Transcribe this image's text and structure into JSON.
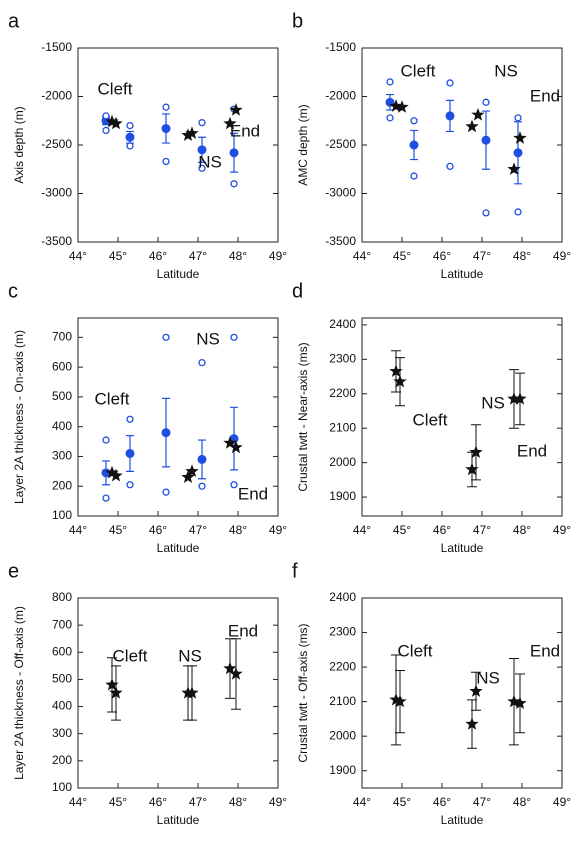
{
  "chart_data": [
    {
      "type": "scatter",
      "label": "a",
      "ylabel": "Axis depth (m)",
      "xlabel": "Latitude",
      "xlim": [
        44,
        49
      ],
      "ylim": [
        -3500,
        -1500
      ],
      "xticks": [
        {
          "value": 44,
          "label": "44°"
        },
        {
          "value": 45,
          "label": "45°"
        },
        {
          "value": 46,
          "label": "46°"
        },
        {
          "value": 47,
          "label": "47°"
        },
        {
          "value": 48,
          "label": "48°"
        },
        {
          "value": 49,
          "label": "49°"
        }
      ],
      "yticks": [
        -3500,
        -3000,
        -2500,
        -2000,
        -1500
      ],
      "color": "#1f4fe0",
      "means": {
        "x": [
          44.7,
          45.3,
          46.2,
          47.1,
          47.9
        ],
        "values": [
          -2250,
          -2420,
          -2330,
          -2550,
          -2580
        ],
        "errors": [
          40,
          60,
          150,
          130,
          200
        ]
      },
      "extremes": {
        "min": [
          -2350,
          -2510,
          -2670,
          -2740,
          -2900
        ],
        "max": [
          -2200,
          -2300,
          -2110,
          -2270,
          -2130
        ]
      },
      "stars": {
        "x": [
          44.85,
          44.95,
          46.75,
          46.85,
          47.8,
          47.95
        ],
        "values": [
          -2260,
          -2280,
          -2400,
          -2380,
          -2280,
          -2140
        ]
      },
      "annotations": [
        "Cleft",
        "NS",
        "End"
      ]
    },
    {
      "type": "scatter",
      "label": "b",
      "ylabel": "AMC depth (m)",
      "xlabel": "Latitude",
      "xlim": [
        44,
        49
      ],
      "ylim": [
        -3500,
        -1500
      ],
      "xticks": [
        {
          "value": 44,
          "label": "44°"
        },
        {
          "value": 45,
          "label": "45°"
        },
        {
          "value": 46,
          "label": "46°"
        },
        {
          "value": 47,
          "label": "47°"
        },
        {
          "value": 48,
          "label": "48°"
        },
        {
          "value": 49,
          "label": "49°"
        }
      ],
      "yticks": [
        -3500,
        -3000,
        -2500,
        -2000,
        -1500
      ],
      "color": "#1f4fe0",
      "means": {
        "x": [
          44.7,
          45.3,
          46.2,
          47.1,
          47.9
        ],
        "values": [
          -2060,
          -2500,
          -2200,
          -2450,
          -2580
        ],
        "errors": [
          80,
          150,
          160,
          300,
          320
        ]
      },
      "extremes": {
        "min": [
          -2220,
          -2820,
          -2720,
          -3200,
          -3190
        ],
        "max": [
          -1850,
          -2250,
          -1860,
          -2060,
          -2220
        ]
      },
      "stars": {
        "x": [
          44.85,
          45.0,
          46.75,
          46.9,
          47.8,
          47.95
        ],
        "values": [
          -2100,
          -2110,
          -2310,
          -2190,
          -2750,
          -2430
        ]
      },
      "annotations": [
        "Cleft",
        "NS",
        "End"
      ]
    },
    {
      "type": "scatter",
      "label": "c",
      "ylabel": "Layer 2A thickness - On-axis (m)",
      "xlabel": "Latitude",
      "xlim": [
        44,
        49
      ],
      "ylim": [
        100,
        765
      ],
      "xticks": [
        {
          "value": 44,
          "label": "44°"
        },
        {
          "value": 45,
          "label": "45°"
        },
        {
          "value": 46,
          "label": "46°"
        },
        {
          "value": 47,
          "label": "47°"
        },
        {
          "value": 48,
          "label": "48°"
        },
        {
          "value": 49,
          "label": "49°"
        }
      ],
      "yticks": [
        100,
        200,
        300,
        400,
        500,
        600,
        700
      ],
      "color": "#1f4fe0",
      "means": {
        "x": [
          44.7,
          45.3,
          46.2,
          47.1,
          47.9
        ],
        "values": [
          245,
          310,
          380,
          290,
          360
        ],
        "errors": [
          40,
          60,
          115,
          65,
          105
        ]
      },
      "extremes": {
        "min": [
          160,
          205,
          180,
          200,
          205
        ],
        "max": [
          355,
          425,
          700,
          615,
          700
        ]
      },
      "stars": {
        "x": [
          44.85,
          44.95,
          46.75,
          46.85,
          47.8,
          47.95
        ],
        "values": [
          245,
          235,
          230,
          250,
          345,
          330
        ]
      },
      "annotations": [
        "Cleft",
        "NS",
        "End"
      ]
    },
    {
      "type": "scatter",
      "label": "d",
      "ylabel": "Crustal twtt - Near-axis (ms)",
      "xlabel": "Latitude",
      "xlim": [
        44,
        49
      ],
      "ylim": [
        1845,
        2420
      ],
      "xticks": [
        {
          "value": 44,
          "label": "44°"
        },
        {
          "value": 45,
          "label": "45°"
        },
        {
          "value": 46,
          "label": "46°"
        },
        {
          "value": 47,
          "label": "47°"
        },
        {
          "value": 48,
          "label": "48°"
        },
        {
          "value": 49,
          "label": "49°"
        }
      ],
      "yticks": [
        1900,
        2000,
        2100,
        2200,
        2300,
        2400
      ],
      "stars": {
        "x": [
          44.85,
          44.95,
          46.75,
          46.85,
          47.8,
          47.95
        ],
        "values": [
          2265,
          2235,
          1980,
          2030,
          2185,
          2185
        ],
        "errors": [
          60,
          70,
          50,
          80,
          85,
          75
        ]
      },
      "annotations": [
        "Cleft",
        "NS",
        "End"
      ]
    },
    {
      "type": "scatter",
      "label": "e",
      "ylabel": "Layer 2A thickness - Off-axis (m)",
      "xlabel": "Latitude",
      "xlim": [
        44,
        49
      ],
      "ylim": [
        100,
        800
      ],
      "xticks": [
        {
          "value": 44,
          "label": "44°"
        },
        {
          "value": 45,
          "label": "45°"
        },
        {
          "value": 46,
          "label": "46°"
        },
        {
          "value": 47,
          "label": "47°"
        },
        {
          "value": 48,
          "label": "48°"
        },
        {
          "value": 49,
          "label": "49°"
        }
      ],
      "yticks": [
        100,
        200,
        300,
        400,
        500,
        600,
        700,
        800
      ],
      "stars": {
        "x": [
          44.85,
          44.95,
          46.75,
          46.85,
          47.8,
          47.95
        ],
        "values": [
          480,
          450,
          450,
          450,
          540,
          520
        ],
        "errors": [
          100,
          100,
          100,
          100,
          110,
          130
        ]
      },
      "annotations": [
        "Cleft",
        "NS",
        "End"
      ]
    },
    {
      "type": "scatter",
      "label": "f",
      "ylabel": "Crustal twtt - Off-axis (ms)",
      "xlabel": "Latitude",
      "xlim": [
        44,
        49
      ],
      "ylim": [
        1850,
        2400
      ],
      "xticks": [
        {
          "value": 44,
          "label": "44°"
        },
        {
          "value": 45,
          "label": "45°"
        },
        {
          "value": 46,
          "label": "46°"
        },
        {
          "value": 47,
          "label": "47°"
        },
        {
          "value": 48,
          "label": "48°"
        },
        {
          "value": 49,
          "label": "49°"
        }
      ],
      "yticks": [
        1900,
        2000,
        2100,
        2200,
        2300,
        2400
      ],
      "stars": {
        "x": [
          44.85,
          44.95,
          46.75,
          46.85,
          47.8,
          47.95
        ],
        "values": [
          2105,
          2100,
          2035,
          2130,
          2100,
          2095
        ],
        "errors": [
          130,
          90,
          70,
          55,
          125,
          85
        ]
      },
      "annotations": [
        "Cleft",
        "NS",
        "End"
      ]
    }
  ]
}
